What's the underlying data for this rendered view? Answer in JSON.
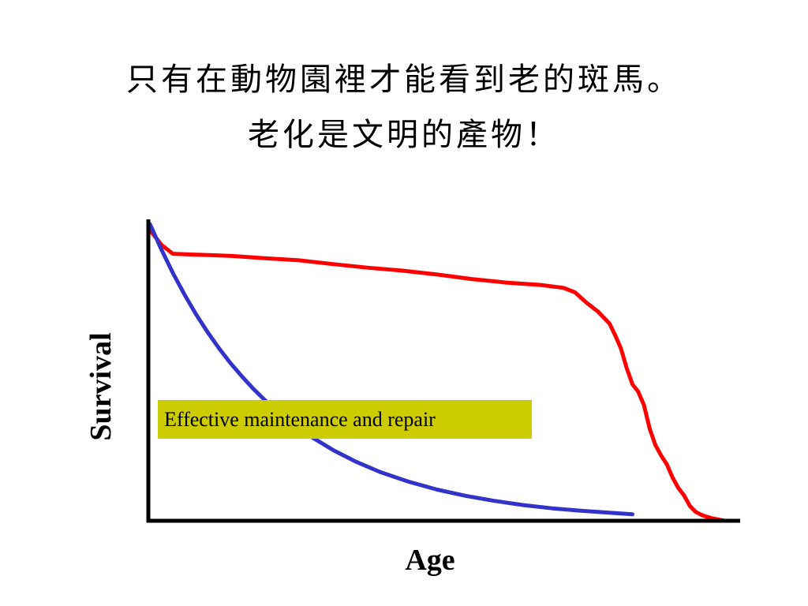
{
  "slide": {
    "title_line1": "只有在動物園裡才能看到老的斑馬。",
    "title_line2": "老化是文明的產物！"
  },
  "chart_data": {
    "type": "line",
    "xlabel": "Age",
    "ylabel": "Survival",
    "xlim": [
      0,
      100
    ],
    "ylim": [
      0,
      100
    ],
    "grid": false,
    "legend": "none",
    "annotation": {
      "text": "Effective maintenance and repair",
      "background": "#cccc00"
    },
    "series": [
      {
        "color": "#ff0000",
        "x": [
          0,
          2,
          4,
          8,
          14,
          20,
          26,
          32,
          38,
          44,
          50,
          56,
          62,
          68,
          72,
          74,
          76,
          78,
          80,
          81,
          82,
          83,
          84,
          85,
          86,
          87,
          88,
          89,
          90,
          91,
          92,
          93,
          94,
          95,
          96,
          97,
          98,
          99,
          100
        ],
        "y": [
          98,
          93,
          90,
          89.7,
          89.3,
          88.5,
          87.8,
          86.5,
          85.3,
          84.3,
          83.0,
          81.5,
          80.3,
          79.5,
          78.5,
          77.0,
          73.5,
          70.5,
          66.5,
          62.5,
          58.0,
          51.5,
          46.0,
          43.5,
          39.0,
          31.0,
          25.5,
          22.0,
          19.0,
          14.5,
          11.0,
          8.5,
          5.0,
          3.0,
          2.0,
          1.3,
          0.8,
          0.4,
          0
        ]
      },
      {
        "color": "#3333cc",
        "x": [
          0,
          2,
          4,
          6,
          8,
          10,
          12,
          14,
          16,
          18,
          20,
          22,
          25,
          28,
          32,
          36,
          40,
          45,
          50,
          55,
          60,
          65,
          70,
          75,
          80,
          84
        ],
        "y": [
          100,
          91.4,
          83.5,
          76.3,
          69.7,
          63.7,
          58.2,
          53.2,
          48.7,
          44.5,
          40.7,
          37.2,
          32.5,
          28.4,
          23.7,
          19.8,
          16.5,
          13.2,
          10.5,
          8.4,
          6.7,
          5.3,
          4.2,
          3.4,
          2.7,
          2.2
        ]
      }
    ]
  }
}
